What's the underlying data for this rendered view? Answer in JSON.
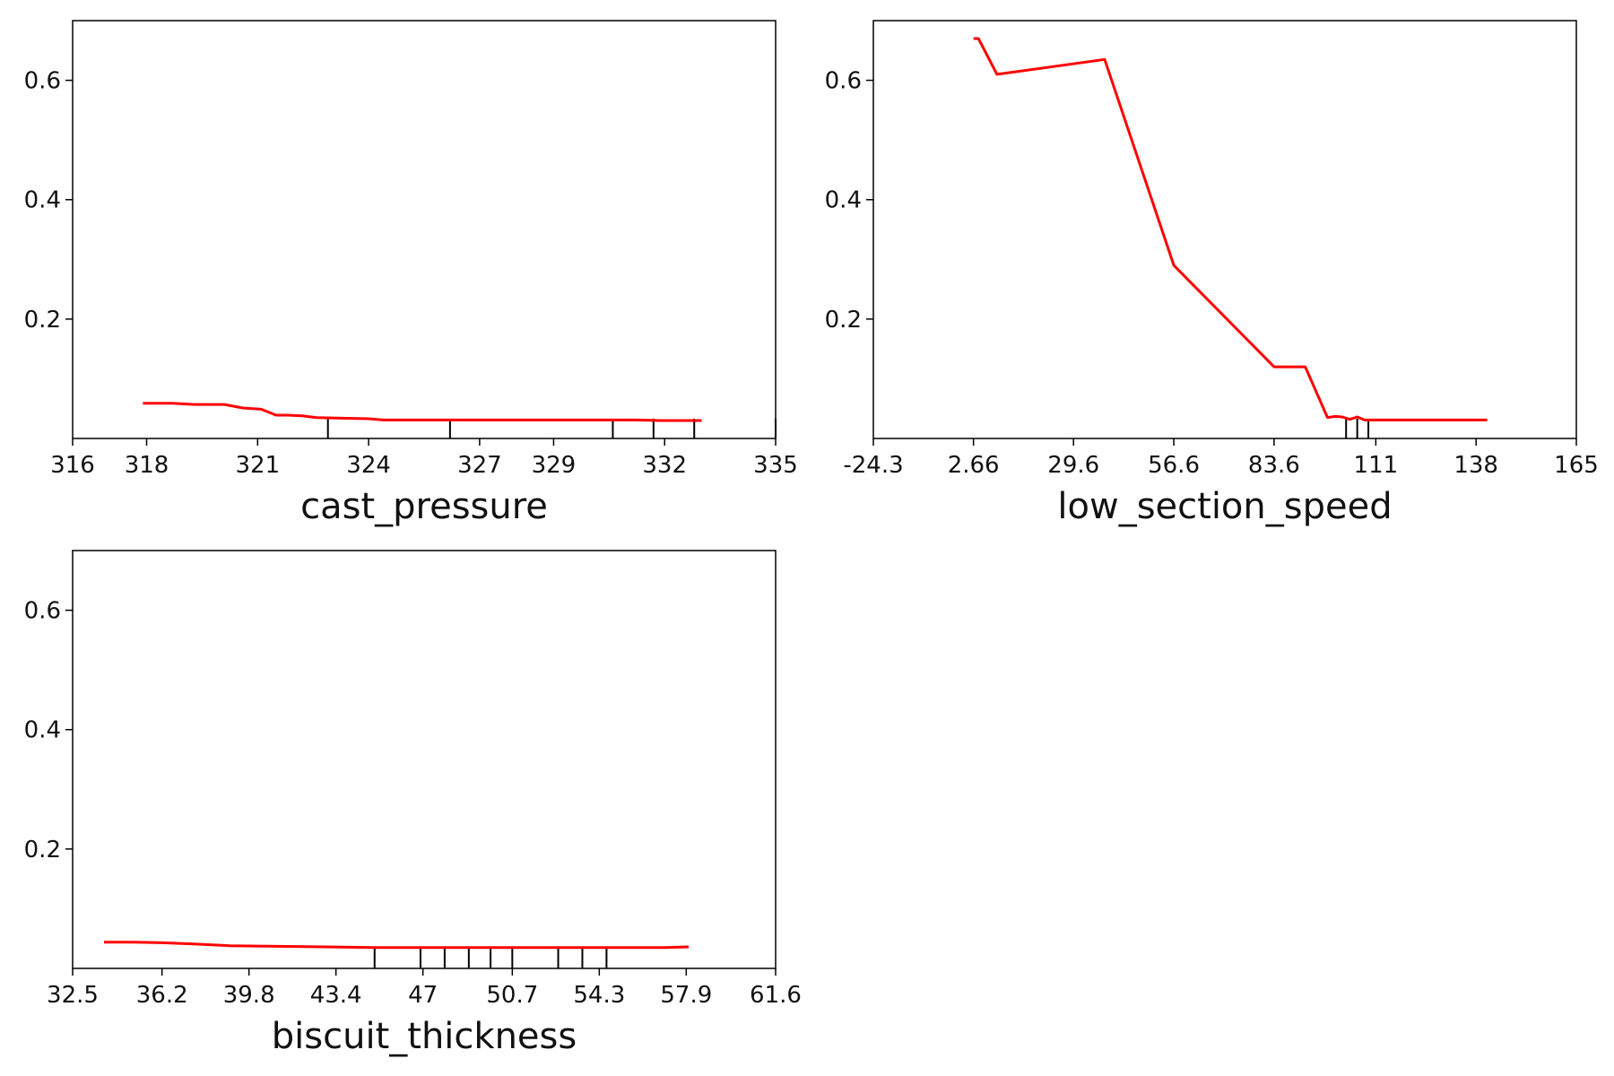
{
  "chart_data": [
    {
      "type": "line",
      "xlabel": "cast_pressure",
      "ylabel": "",
      "title": "",
      "xlim": [
        316,
        335
      ],
      "ylim": [
        0,
        0.7
      ],
      "xticks": [
        316,
        318,
        321,
        324,
        327,
        329,
        332,
        335
      ],
      "xtick_labels": [
        "316",
        "318",
        "321",
        "324",
        "327",
        "329",
        "332",
        "335"
      ],
      "yticks": [
        0.2,
        0.4,
        0.6
      ],
      "ytick_labels": [
        "0.2",
        "0.4",
        "0.6"
      ],
      "grid": false,
      "line_color": "#ff0000",
      "series": [
        {
          "x": [
            317.9,
            318.7,
            319.3,
            320.1,
            320.6,
            321.1,
            321.5,
            321.8,
            322.2,
            322.6,
            323.3,
            324.0,
            324.4,
            325.5,
            327.0,
            328.5,
            329.3,
            329.8,
            330.5,
            331.2,
            331.9,
            332.6,
            333.0
          ],
          "y": [
            0.059,
            0.059,
            0.057,
            0.057,
            0.051,
            0.049,
            0.039,
            0.039,
            0.038,
            0.035,
            0.034,
            0.033,
            0.031,
            0.031,
            0.031,
            0.031,
            0.031,
            0.031,
            0.031,
            0.031,
            0.03,
            0.03,
            0.03
          ]
        }
      ],
      "rug": [
        322.9,
        326.2,
        330.6,
        331.7,
        332.8,
        335.0
      ]
    },
    {
      "type": "line",
      "xlabel": "low_section_speed",
      "ylabel": "",
      "title": "",
      "xlim": [
        -24.3,
        165
      ],
      "ylim": [
        0,
        0.7
      ],
      "xticks": [
        -24.3,
        2.66,
        29.6,
        56.6,
        83.6,
        111,
        138,
        165
      ],
      "xtick_labels": [
        "-24.3",
        "2.66",
        "29.6",
        "56.6",
        "83.6",
        "111",
        "138",
        "165"
      ],
      "yticks": [
        0.2,
        0.4,
        0.6
      ],
      "ytick_labels": [
        "0.2",
        "0.4",
        "0.6"
      ],
      "grid": false,
      "line_color": "#ff0000",
      "series": [
        {
          "x": [
            2.66,
            4.0,
            9.0,
            38.0,
            56.6,
            83.6,
            92.0,
            98.0,
            100.0,
            102.0,
            104.0,
            106.0,
            108.0,
            110.0,
            141.0
          ],
          "y": [
            0.67,
            0.67,
            0.61,
            0.635,
            0.29,
            0.12,
            0.12,
            0.035,
            0.037,
            0.036,
            0.032,
            0.036,
            0.031,
            0.031,
            0.031
          ]
        }
      ],
      "rug": [
        103.0,
        106.0,
        109.0
      ]
    },
    {
      "type": "line",
      "xlabel": "biscuit_thickness",
      "ylabel": "",
      "title": "",
      "xlim": [
        32.5,
        61.6
      ],
      "ylim": [
        0,
        0.7
      ],
      "xticks": [
        32.5,
        36.2,
        39.8,
        43.4,
        47,
        50.7,
        54.3,
        57.9,
        61.6
      ],
      "xtick_labels": [
        "32.5",
        "36.2",
        "39.8",
        "43.4",
        "47",
        "50.7",
        "54.3",
        "57.9",
        "61.6"
      ],
      "yticks": [
        0.2,
        0.4,
        0.6
      ],
      "ytick_labels": [
        "0.2",
        "0.4",
        "0.6"
      ],
      "grid": false,
      "line_color": "#ff0000",
      "series": [
        {
          "x": [
            33.8,
            35.0,
            36.2,
            37.5,
            39.0,
            41.0,
            43.0,
            45.0,
            47.0,
            50.0,
            53.0,
            55.0,
            57.0,
            58.0
          ],
          "y": [
            0.044,
            0.044,
            0.043,
            0.041,
            0.038,
            0.037,
            0.036,
            0.035,
            0.035,
            0.035,
            0.035,
            0.035,
            0.035,
            0.036
          ]
        }
      ],
      "rug": [
        45.0,
        46.9,
        47.9,
        48.9,
        49.8,
        50.7,
        52.6,
        53.6,
        54.6
      ]
    }
  ]
}
